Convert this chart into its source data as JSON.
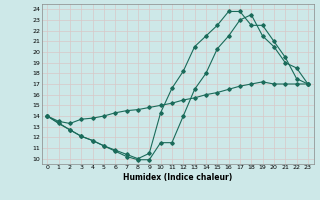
{
  "xlabel": "Humidex (Indice chaleur)",
  "bg_color": "#cde8e8",
  "grid_color": "#c0d8d8",
  "line_color": "#1a6b5a",
  "xlim": [
    -0.5,
    23.5
  ],
  "ylim": [
    9.5,
    24.5
  ],
  "xticks": [
    0,
    1,
    2,
    3,
    4,
    5,
    6,
    7,
    8,
    9,
    10,
    11,
    12,
    13,
    14,
    15,
    16,
    17,
    18,
    19,
    20,
    21,
    22,
    23
  ],
  "yticks": [
    10,
    11,
    12,
    13,
    14,
    15,
    16,
    17,
    18,
    19,
    20,
    21,
    22,
    23,
    24
  ],
  "line1_x": [
    0,
    1,
    2,
    3,
    4,
    5,
    6,
    7,
    8,
    9,
    10,
    11,
    12,
    13,
    14,
    15,
    16,
    17,
    18,
    19,
    20,
    21,
    22,
    23
  ],
  "line1_y": [
    14,
    13.3,
    12.7,
    12.1,
    11.7,
    11.2,
    10.7,
    10.2,
    9.9,
    9.9,
    11.5,
    11.5,
    14.0,
    16.5,
    18.0,
    20.3,
    21.5,
    23.0,
    23.5,
    21.5,
    20.5,
    19.0,
    18.5,
    17.0
  ],
  "line2_x": [
    0,
    1,
    2,
    3,
    4,
    5,
    6,
    7,
    8,
    9,
    10,
    11,
    12,
    13,
    14,
    15,
    16,
    17,
    18,
    19,
    20,
    21,
    22,
    23
  ],
  "line2_y": [
    14,
    13.5,
    13.3,
    13.7,
    13.8,
    14.0,
    14.3,
    14.5,
    14.6,
    14.8,
    15.0,
    15.2,
    15.5,
    15.7,
    16.0,
    16.2,
    16.5,
    16.8,
    17.0,
    17.2,
    17.0,
    17.0,
    17.0,
    17.0
  ],
  "line3_x": [
    0,
    2,
    3,
    4,
    5,
    6,
    7,
    8,
    9,
    10,
    11,
    12,
    13,
    14,
    15,
    16,
    17,
    18,
    19,
    20,
    21,
    22,
    23
  ],
  "line3_y": [
    14,
    12.7,
    12.1,
    11.7,
    11.2,
    10.8,
    10.4,
    10.0,
    10.5,
    14.3,
    16.6,
    18.2,
    20.5,
    21.5,
    22.5,
    23.8,
    23.8,
    22.5,
    22.5,
    21.0,
    19.5,
    17.5,
    17.0
  ]
}
